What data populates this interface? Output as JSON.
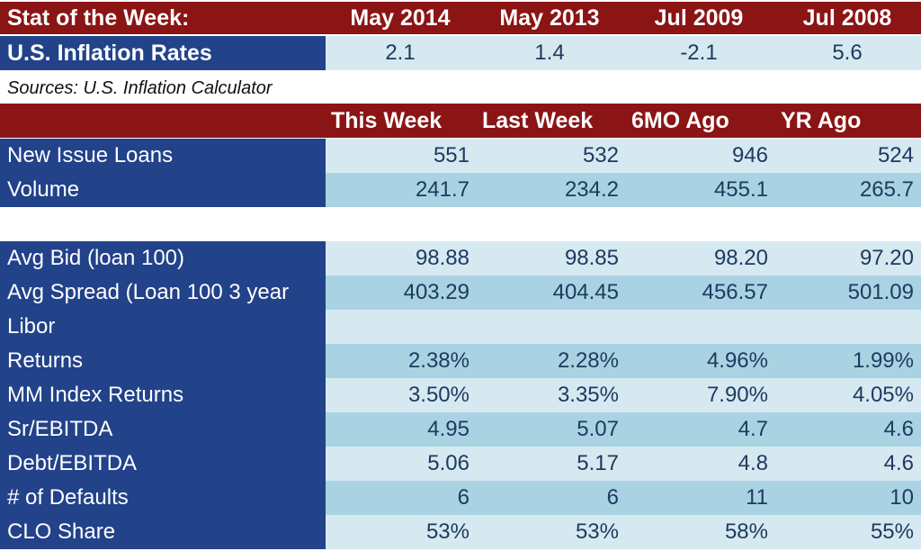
{
  "stat": {
    "header": [
      "Stat of the Week:",
      "May 2014",
      "May 2013",
      "Jul 2009",
      "Jul  2008"
    ],
    "row_label": "U.S. Inflation Rates",
    "values": [
      "2.1",
      "1.4",
      "-2.1",
      "5.6"
    ]
  },
  "source": "Sources: U.S. Inflation Calculator",
  "table": {
    "columns": [
      "",
      "This Week",
      "Last Week",
      "6MO Ago",
      "YR Ago"
    ],
    "group1": [
      {
        "label": "New Issue Loans",
        "values": [
          "551",
          "532",
          "946",
          "524"
        ]
      },
      {
        "label": "Volume",
        "values": [
          "241.7",
          "234.2",
          "455.1",
          "265.7"
        ]
      }
    ],
    "group2": [
      {
        "label": "Avg Bid (loan 100)",
        "values": [
          "98.88",
          "98.85",
          "98.20",
          "97.20"
        ]
      },
      {
        "label": "Avg Spread (Loan 100 3 year",
        "values": [
          "403.29",
          "404.45",
          "456.57",
          "501.09"
        ]
      },
      {
        "label": "Libor",
        "values": [
          "",
          "",
          "",
          ""
        ]
      },
      {
        "label": "Returns",
        "values": [
          "2.38%",
          "2.28%",
          "4.96%",
          "1.99%"
        ]
      },
      {
        "label": "MM Index Returns",
        "values": [
          "3.50%",
          "3.35%",
          "7.90%",
          "4.05%"
        ]
      },
      {
        "label": "Sr/EBITDA",
        "values": [
          "4.95",
          "5.07",
          "4.7",
          "4.6"
        ]
      },
      {
        "label": "Debt/EBITDA",
        "values": [
          "5.06",
          "5.17",
          "4.8",
          "4.6"
        ]
      },
      {
        "label": "# of Defaults",
        "values": [
          "6",
          "6",
          "11",
          "10"
        ]
      },
      {
        "label": "CLO Share",
        "values": [
          "53%",
          "53%",
          "58%",
          "55%"
        ]
      }
    ]
  }
}
